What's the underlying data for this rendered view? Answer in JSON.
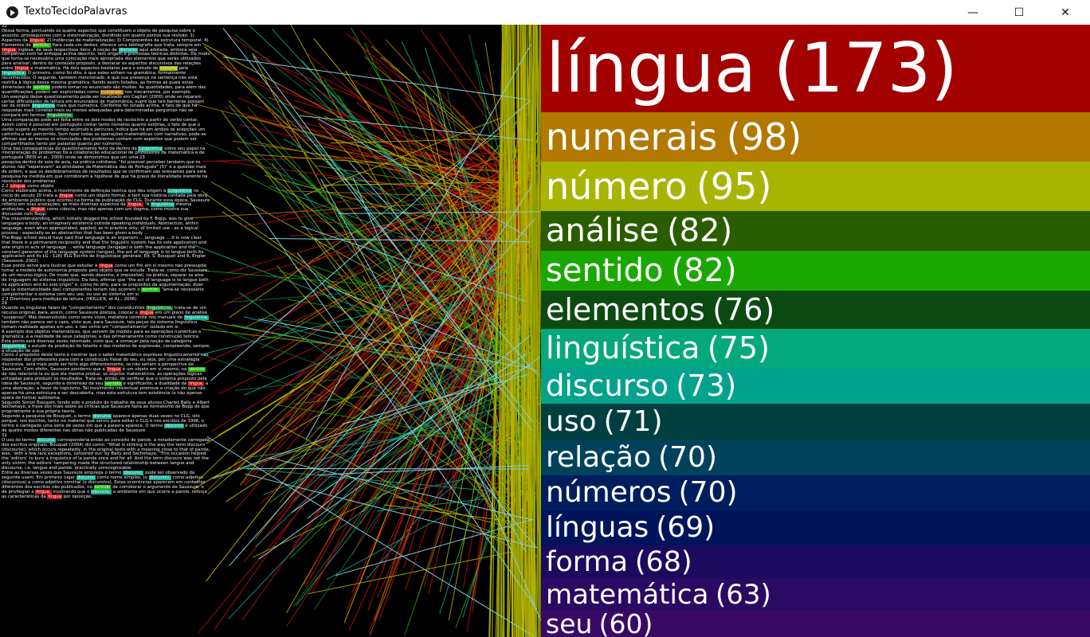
{
  "window": {
    "title": "TextoTecidoPalavras",
    "minimize_glyph": "—",
    "maximize_glyph": "☐",
    "close_glyph": "✕"
  },
  "text_panel": {
    "paragraphs": [
      "22",
      "Dessa forma, pontuando os quatro aspectos que constituem o objeto de pesquisa sobre o assunto, prosseguimos com a sistematização, dividindo em quatro pontos sua revisão: 1) Aspectos da língua; 2) Instâncias de materialização; 3) Componentes da estrutura temporal; 4) Elementos de sentido. Para cada um destes, oferece uma bibliografia que trata, sempre em língua inglesa, de seus respectivos itens. A noção de discurso aqui adotada, embora seja compatível com tal enfoque acima descrito, tem origem e premissas teóricas distintas. De modo que torna-se necessária uma colocação mais apropriada dos elementos que serão utilizados para analisar, dentro do conteúdo proposto, a destacar os aspectos discursivos das relações entre língua e matemática. Há dois aspectos basilares para o estudo de número pela linguística. O primeiro, como foi dito, é que estes sofrem na gramática, formalmente reconhecidos. O segundo, também mencionado, é que sua presença na sentença não está restrita à lógica dessa mesma gramática. Sendo assim listados, as formas as quais estas dimensões de sentido podem tomar no enunciado são muitas. As quantidades, para além das quantificações, podem ser explicitadas como numerais, nos mecanismos, por exemplo.",
      "Um exemplo desse questionamento pode ser localizado em Cagliari (2000) onde se reparam certas dificuldades de leitura em enunciados de matemática, supre que tais barreiras possam ser de ordem linguística mais que numérica. Conforme foi notado acima, o fato de que há respostas mais corretas mais ou menos adequadas para determinadas perguntas não se compara em termos linguísticos.",
      "Uma comparação pode ser feita entre os dois modos de raciocínio a partir do verbo contar. Assim como é possível em português contar tanto números quanto estórias, o fato de que o verbo sugere ao mesmo tempo acúmulo e percurso, indica que há em ambos os acepções um caminho a ser percorrido. Sem fazer todas as operações matemáticas com narrativas, pode-se afirmar que ao menos os enunciados dos problemas contam com aspectos que podem ser compartilhados tanto por palavras quanto por números.",
      "Uma das consequências do questionamento feito da dentro da Linguística sobre seu papel na interpretação de problemas foi a colaboração educacional de professores de matemática e de português (REIS et al., 2009) onde se demonstrou que um uma 23",
      "pesquisa dentro de sala de aula, na prática cotidiana: \"foi possível perceber também que os alunos não \"separavam\" as atividades de Matemática das de Português\" (5)\" e a questão mais de ordem, e que os desdobramentos de resultados que se confirmam são relevantes para esta pesquisa na medida em que corroboram a hipótese de que há graus de literalidade inerente na resolução dos problemas.",
      "2.2 Língua como objeto",
      "Como elaborado acima, o movimento de definição teórica que deu origem à Linguística no início do século 20 trata a língua como um objeto formal, e tem sua história contada pela obra do ambiente público que ocorreu na forma de publicação do CLG. Durante essa época, Saussure refletiu em suas anotações, as mais diversas aspectos da língua. \"A linguística mesma anotações, a língua como ciência, mas não apenas com um dogma, como mostra sua discussão com Bopp:",
      "The misunderstanding, which initially dogged the school founded by F. Bopp, was to give languages a body, an imaginary existence outside speaking individuals. Abstraction, within language, even when appropriated, applied, as in practice only; of limited use - as a logical process - especially as an abstraction that has been given a body ...",
      "The Bopp school would have said that language is an organism ... language ... It is now clear that there is a permanent reciprocity and that the linguistic system has its sole application and sole origin in acts of language ... while language (langage) is both the application and the constant generator of the language system (langue), the act of language is to langue both its application and its LG : 128) ELG Escrits de linguistique générale, Ed. S. Bouquet and R. Engler (Saussure, 2002)",
      "Esse ponto serve para ilustrar que estudar a língua como um fim em si mesmo não pressupõe tomar a modelo de autonomia proposto pelo objeto que se estuda. Trata-se, como diz Saussure, de um recurso lógico. De modo que, sendo desenho, é impossível, na prática, separar os atos de linguagem do sistema linguístico. Da fato, afirmar que \"the act of language is to langue both its application and its sole origin\" é, como foi dito, para se propósitos da argumentação, dizer que (a sistematicidade das) componentes teriam não ocorrem o sentido. \"ama-se necessário complementar o sistema com seu uso, ou uso ao sistema em si.",
      "2.3 Diretrizes para medição de leitura, (HOLLICK, et AL., 2006)",
      "29",
      "Quando os linguistas falam de \"comportamento\" dos constituintes linguísticos, trata-se de um recurso original, para, assim, como Saussure postula, colocar a língua em um plano de análise \"suspenso\". Mas desenvolvido como seres vivos, metáfora corrente nos manuais de linguística, também não parece ser o caso, visto que, para Saussure, tais peças do sistema linguístico tomam realidade apenas em uso, e não como um \"comportamento\" isolado em si.",
      "A exemplo dos objetos matemáticos, que servem de modelo para as operações numéricas e gramática, e a realidade de seus categorias, a das primeiramente como construção teórica. Esta ponto será diversas vezes retomado, visto que, a começar pela noção de categoria linguística, o estudo da produção do falante e das modelos de expressão, compreende, sempre, a situação de uso.",
      "Como o propósito deste texto é mostrar que o saber matemático expresso linguisticamente nas respostas dos professores para com a construção frasal do seu, ou seja, por uma estratégia discursiva, será mais pode ser feito algo diferentemente, se não seriam a perspectiva de Saussure. Com efeito, Saussure ponderou que a língua é um objeto em si mesmo, no sentido de não relacioná-la ou que ela mesma produz. os objetos matemáticos, as operações lógicas utilizadas para produzir os resultados. Trata-se, então, de verificar que o sistema proposto pela ideia de Saussure, segundo a dimensão de seu sentido e significante, a dualidade da língua, a uma abstração, a favor do logicismo. Tal movimento intelectual promove a criação do que não apenas há uma estrutura a ser descoberta, mas esta estrutura tem existência (e não apenas opera de forma) autônoma.",
      "Segundo Simon Bouquet, tendo sido o produto do trabalho de seus alunos Charles Bally e Albert Sechehaye, a frase dos mais sobre as críticas que Saussure fazia ao formalismo de Bopp do que propriamente a sua própria teoria.",
      "Segundo a pesquisa de Bouquet, o termo discurso aparece apenas duas vezes no CLG, isto porque, nos escritos, tanto no material que serviu para editar o CLG e nos escritos de 1996, o termo é carregado uma série de vezes em que a palavra aparece. O termo discurso é utilizado de quatro modos diferentes nas obras não publicadas de Saussure.",
      "31",
      "O uso do termo discurso corresponderia então ao conceito de parole, a notadamente carregada dos escritos originais. Bouquet (2004) diz como: \"What is striking is the way the term discours (discourse), which occurs repeatedly, in the original texts with a meaning close to that of parole, was, ‘with a few rare exceptions, censored out’ by Bally and Sechehaye. \"This occasion helped the ‘editors’ to bury a linguistics of la parole once and for all. And the term discours was not the only victim; the editors’ tampering made the structured relationship between langue and discourse, i.e. langue and parole, practically unrecognizable.",
      "Entre as diversas vezes que Saussure emprega o termo discurso, pode ser observado da seguinte usam: Em primeiro lugar discurso como nome simples, (o discurso), como adjetivo (discursiva) e como adjetivo nominal (o discursivo). Estas ocorrências aparecem em contextos diferentes dos escritos não publicados, no sentido de corroborar o argumento de Saussure, o de privilegiar a língua, mostrando que o discurso, o ambiente em que ocorre a parole, reforça as características da língua por oposição."
    ]
  },
  "highlight_words": [
    {
      "word": "língua",
      "color": "#c01010"
    },
    {
      "word": "discurso",
      "color": "#13a991"
    },
    {
      "word": "linguística",
      "color": "#0ab08f"
    },
    {
      "word": "número",
      "color": "#a6b800"
    },
    {
      "word": "numerais",
      "color": "#b77a00"
    },
    {
      "word": "sentido",
      "color": "#1ab800"
    },
    {
      "word": "linguísticos",
      "color": "#0e7a2a"
    }
  ],
  "word_bars": [
    {
      "word": "língua",
      "count": "(173)",
      "color": "#a30000"
    },
    {
      "word": "numerais",
      "count": "(98)",
      "color": "#b37800"
    },
    {
      "word": "número",
      "count": "(95)",
      "color": "#a8b500"
    },
    {
      "word": "análise",
      "count": "(82)",
      "color": "#2a5c00"
    },
    {
      "word": "sentido",
      "count": "(82)",
      "color": "#1aa800"
    },
    {
      "word": "elementos",
      "count": "(76)",
      "color": "#0c4a12"
    },
    {
      "word": "linguística",
      "count": "(75)",
      "color": "#03a97a"
    },
    {
      "word": "discurso",
      "count": "(73)",
      "color": "#03a28c"
    },
    {
      "word": "uso",
      "count": "(71)",
      "color": "#003f40"
    },
    {
      "word": "relação",
      "count": "(70)",
      "color": "#00425c"
    },
    {
      "word": "números",
      "count": "(70)",
      "color": "#001e5e"
    },
    {
      "word": "línguas",
      "count": "(69)",
      "color": "#00145c"
    },
    {
      "word": "forma",
      "count": "(68)",
      "color": "#1c0a5e"
    },
    {
      "word": "matemática",
      "count": "(63)",
      "color": "#2a0a62"
    },
    {
      "word": "seu",
      "count": "(60)",
      "color": "#380a66"
    }
  ]
}
